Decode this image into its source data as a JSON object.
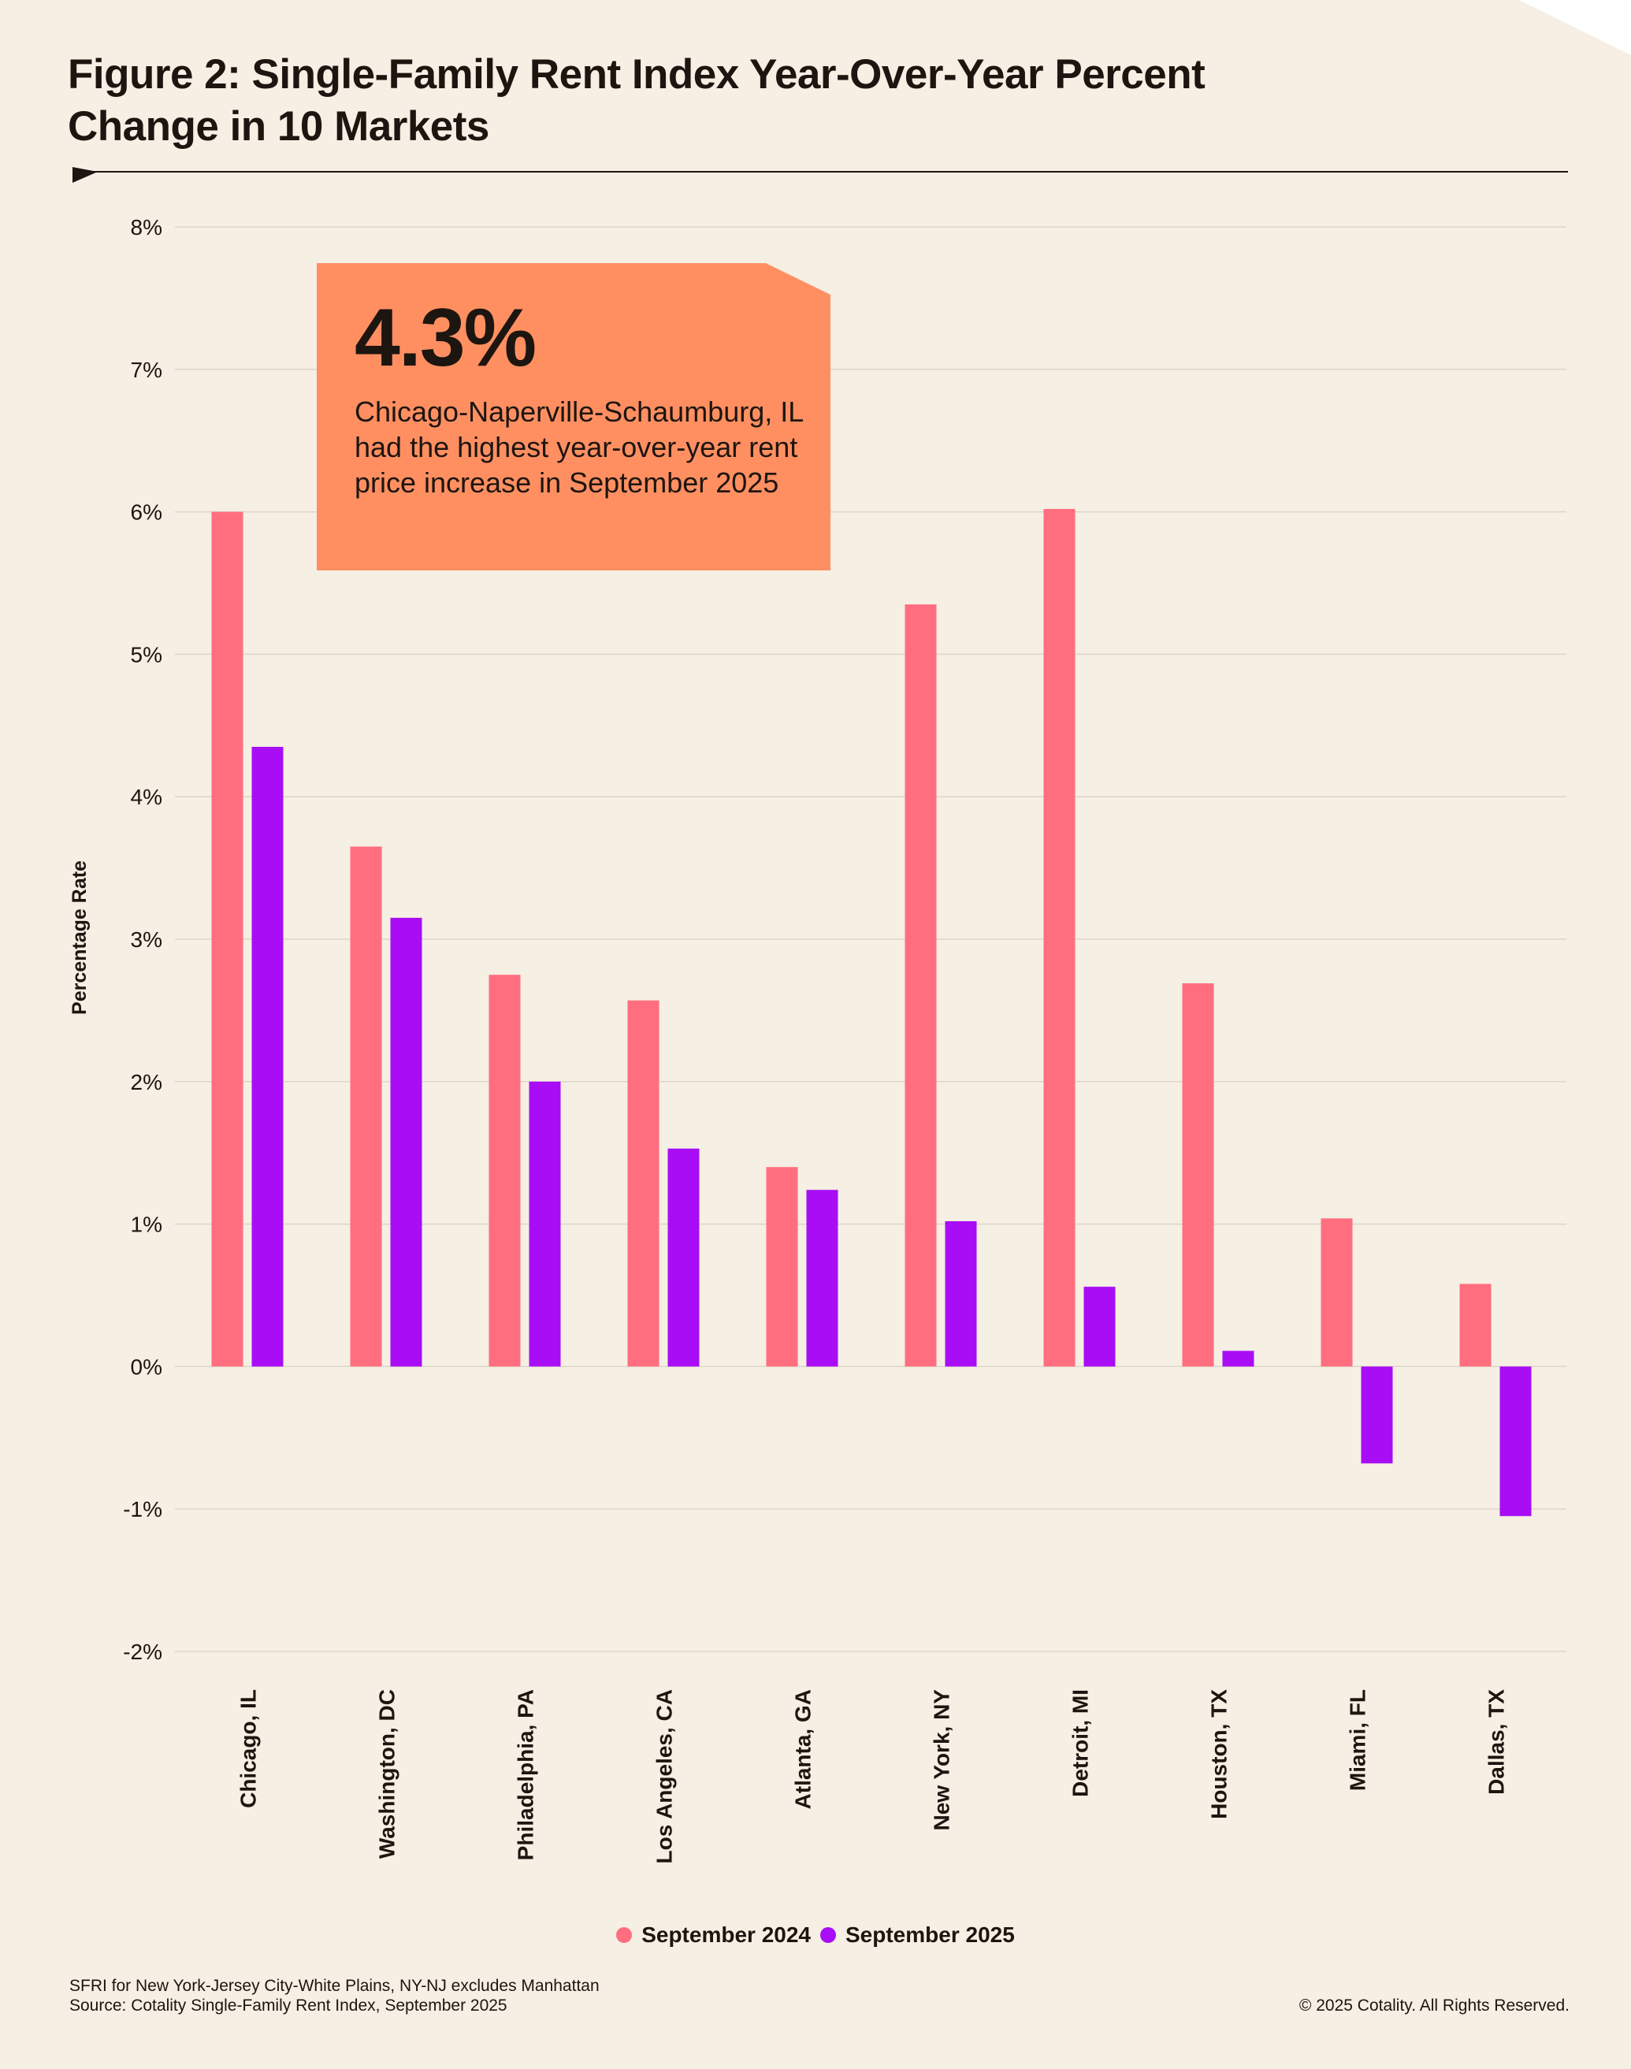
{
  "title": "Figure 2: Single-Family Rent Index Year-Over-Year Percent Change in 10 Markets",
  "callout": {
    "value": "4.3%",
    "text": "Chicago-Naperville-Schaumburg, IL had the highest year-over-year rent price increase in September 2025"
  },
  "colors": {
    "background": "#f6efe3",
    "series_2024": "#ff6e7f",
    "series_2025": "#a80df5",
    "callout": "#ff8f61",
    "grid": "#ddd5c8",
    "text": "#1d1510"
  },
  "chart_data": {
    "type": "bar",
    "title": "Figure 2: Single-Family Rent Index Year-Over-Year Percent Change in 10 Markets",
    "xlabel": "",
    "ylabel": "Percentage Rate",
    "ylim": [
      -2,
      8
    ],
    "yticks": [
      -2,
      -1,
      0,
      1,
      2,
      3,
      4,
      5,
      6,
      7,
      8
    ],
    "ytick_labels": [
      "-2%",
      "-1%",
      "0%",
      "1%",
      "2%",
      "3%",
      "4%",
      "5%",
      "6%",
      "7%",
      "8%"
    ],
    "grid": true,
    "legend_position": "bottom-center",
    "categories": [
      "Chicago, IL",
      "Washington, DC",
      "Philadelphia, PA",
      "Los Angeles, CA",
      "Atlanta, GA",
      "New York, NY",
      "Detroit, MI",
      "Houston, TX",
      "Miami, FL",
      "Dallas, TX"
    ],
    "series": [
      {
        "name": "September 2024",
        "color": "#ff6e7f",
        "values": [
          6.0,
          3.65,
          2.75,
          2.57,
          1.4,
          5.35,
          6.02,
          2.69,
          1.04,
          0.58
        ]
      },
      {
        "name": "September 2025",
        "color": "#a80df5",
        "values": [
          4.35,
          3.15,
          2.0,
          1.53,
          1.24,
          1.02,
          0.56,
          0.11,
          -0.68,
          -1.05
        ]
      }
    ]
  },
  "footer": {
    "note": "SFRI for New York-Jersey City-White Plains, NY-NJ excludes Manhattan",
    "source": "Source: Cotality Single-Family Rent Index, September 2025",
    "copyright": "© 2025 Cotality. All Rights Reserved."
  }
}
